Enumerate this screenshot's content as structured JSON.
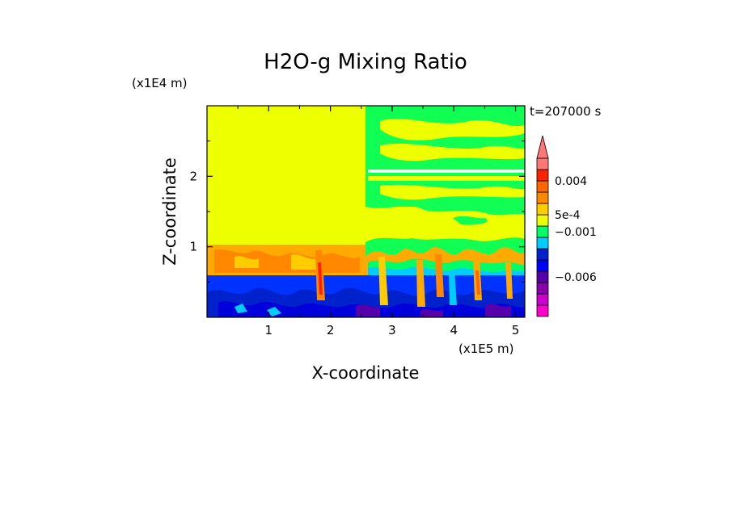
{
  "chart_data": {
    "type": "heatmap",
    "title": "H2O-g Mixing Ratio",
    "xlabel": "X-coordinate",
    "ylabel": "Z-coordinate",
    "x_unit_label": "(x1E5 m)",
    "y_unit_label": "(x1E4 m)",
    "time_label": "t=207000 s",
    "xlim": [
      0,
      5.15
    ],
    "ylim": [
      0,
      3.0
    ],
    "x_ticks": [
      "1",
      "2",
      "3",
      "4",
      "5"
    ],
    "y_ticks": [
      "1",
      "2"
    ],
    "x_tick_values": [
      1,
      2,
      3,
      4,
      5
    ],
    "y_tick_values": [
      1,
      2
    ],
    "colorbar": {
      "levels": [
        {
          "color": "#ff00cc"
        },
        {
          "color": "#cc00cc"
        },
        {
          "color": "#8800aa"
        },
        {
          "color": "#5500aa"
        },
        {
          "color": "#0000ff"
        },
        {
          "color": "#0022cc"
        },
        {
          "color": "#00ccff"
        },
        {
          "color": "#00ff66"
        },
        {
          "color": "#eeff00"
        },
        {
          "color": "#ffcc00"
        },
        {
          "color": "#ff8800"
        },
        {
          "color": "#ff6600"
        },
        {
          "color": "#ff2200"
        },
        {
          "color": "#ff7777"
        }
      ],
      "labels": [
        {
          "text": "0.004",
          "level": 12
        },
        {
          "text": "5e-4",
          "level": 9
        },
        {
          "text": "−0.001",
          "level": 7.5
        },
        {
          "text": "−0.006",
          "level": 3.5
        }
      ],
      "extend": "max"
    },
    "regions": {
      "top_left_color": "#eeff00",
      "top_right_color": "#11ff55",
      "mid_color": "#eeff00",
      "lower_orange_color": "#ff9900",
      "bottom_blue_color": "#0022ee"
    }
  }
}
